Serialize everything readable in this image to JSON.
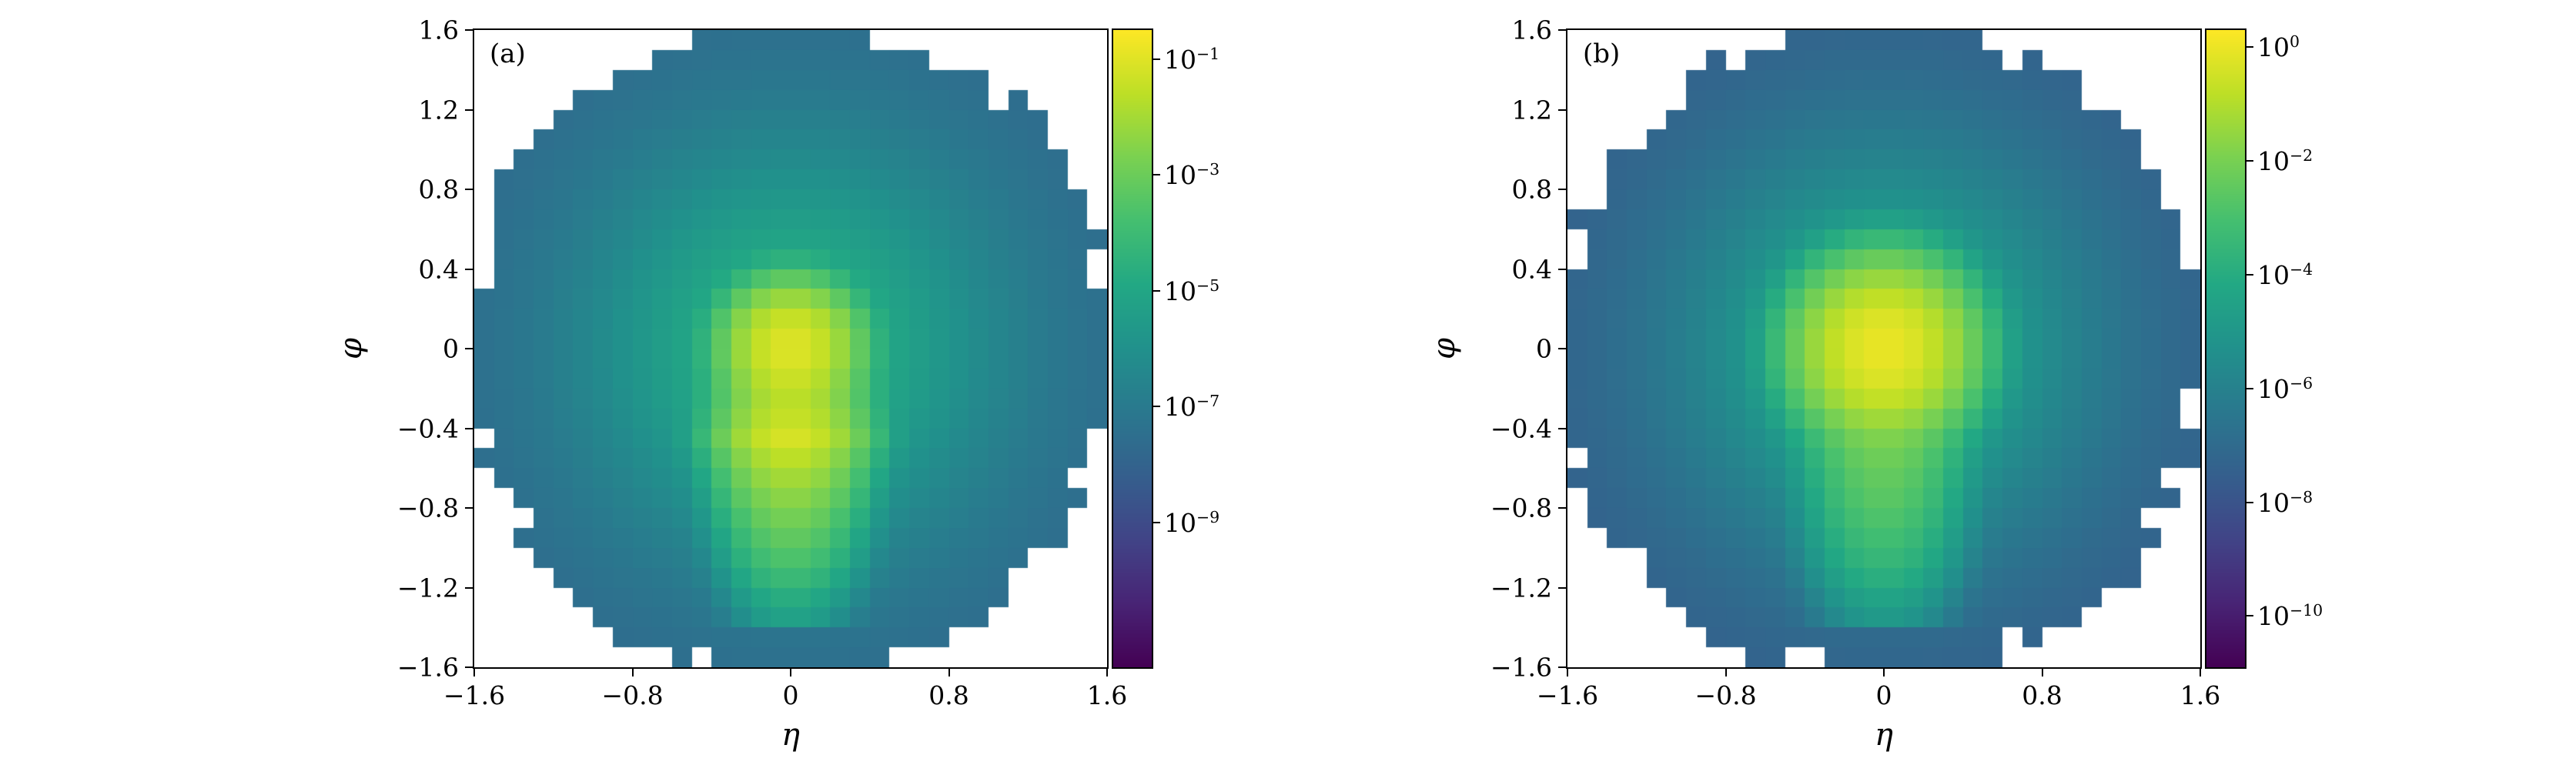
{
  "figure": {
    "background": "#ffffff",
    "type": "two-panel 2D histogram (eta-phi energy-flow heatmaps), log color scale, viridis colormap"
  },
  "colormap_stops": [
    {
      "t": 0.0,
      "hex": "#440154"
    },
    {
      "t": 0.1,
      "hex": "#482475"
    },
    {
      "t": 0.2,
      "hex": "#414487"
    },
    {
      "t": 0.3,
      "hex": "#355f8d"
    },
    {
      "t": 0.4,
      "hex": "#2a788e"
    },
    {
      "t": 0.5,
      "hex": "#21918c"
    },
    {
      "t": 0.6,
      "hex": "#22a884"
    },
    {
      "t": 0.7,
      "hex": "#44bf70"
    },
    {
      "t": 0.8,
      "hex": "#7ad151"
    },
    {
      "t": 0.9,
      "hex": "#bddf26"
    },
    {
      "t": 1.0,
      "hex": "#fde725"
    }
  ],
  "chart_data": [
    {
      "type": "heatmap",
      "panel_label": "(a)",
      "xlabel": "η",
      "ylabel": "φ",
      "x_range": [
        -1.6,
        1.6
      ],
      "y_range": [
        -1.6,
        1.6
      ],
      "grid_bins": 32,
      "grid_on": false,
      "x_ticks": [
        {
          "v": -1.6,
          "label": "−1.6"
        },
        {
          "v": -0.8,
          "label": "−0.8"
        },
        {
          "v": 0,
          "label": "0"
        },
        {
          "v": 0.8,
          "label": "0.8"
        },
        {
          "v": 1.6,
          "label": "1.6"
        }
      ],
      "y_ticks": [
        {
          "v": 1.6,
          "label": "1.6"
        },
        {
          "v": 1.2,
          "label": "1.2"
        },
        {
          "v": 0.8,
          "label": "0.8"
        },
        {
          "v": 0.4,
          "label": "0.4"
        },
        {
          "v": 0,
          "label": "0"
        },
        {
          "v": -0.4,
          "label": "−0.4"
        },
        {
          "v": -0.8,
          "label": "−0.8"
        },
        {
          "v": -1.2,
          "label": "−1.2"
        },
        {
          "v": -1.6,
          "label": "−1.6"
        }
      ],
      "colorbar": {
        "scale": "log10",
        "log_min": -11.5,
        "log_max": -0.5,
        "ticks": [
          {
            "exp": -1,
            "label": "−1"
          },
          {
            "exp": -3,
            "label": "−3"
          },
          {
            "exp": -5,
            "label": "−5"
          },
          {
            "exp": -7,
            "label": "−7"
          },
          {
            "exp": -9,
            "label": "−9"
          }
        ]
      },
      "distribution": {
        "shape": "jagged-disk",
        "disk_radius": 1.56,
        "edge_jitter": 0.16,
        "seed": 1,
        "base": {
          "log_center": -4.3,
          "log_edge": -7.8,
          "sigma": 1.05
        },
        "core_peak": {
          "x": 0,
          "y": 0,
          "log_amp": -1.05,
          "sigma": 0.11
        },
        "streak": {
          "sigma_x": 0.12,
          "profile": [
            [
              0.15,
              -2.6
            ],
            [
              -0.1,
              -2.2
            ],
            [
              -0.3,
              -1.6
            ],
            [
              -0.45,
              -1.15
            ],
            [
              -0.6,
              -1.8
            ],
            [
              -0.85,
              -2.8
            ],
            [
              -1.1,
              -3.8
            ],
            [
              -1.4,
              -5.5
            ]
          ]
        }
      }
    },
    {
      "type": "heatmap",
      "panel_label": "(b)",
      "xlabel": "η",
      "ylabel": "φ",
      "x_range": [
        -1.6,
        1.6
      ],
      "y_range": [
        -1.6,
        1.6
      ],
      "grid_bins": 32,
      "grid_on": false,
      "x_ticks": [
        {
          "v": -1.6,
          "label": "−1.6"
        },
        {
          "v": -0.8,
          "label": "−0.8"
        },
        {
          "v": 0,
          "label": "0"
        },
        {
          "v": 0.8,
          "label": "0.8"
        },
        {
          "v": 1.6,
          "label": "1.6"
        }
      ],
      "y_ticks": [
        {
          "v": 1.6,
          "label": "1.6"
        },
        {
          "v": 1.2,
          "label": "1.2"
        },
        {
          "v": 0.8,
          "label": "0.8"
        },
        {
          "v": 0.4,
          "label": "0.4"
        },
        {
          "v": 0,
          "label": "0"
        },
        {
          "v": -0.4,
          "label": "−0.4"
        },
        {
          "v": -0.8,
          "label": "−0.8"
        },
        {
          "v": -1.2,
          "label": "−1.2"
        },
        {
          "v": -1.6,
          "label": "−1.6"
        }
      ],
      "colorbar": {
        "scale": "log10",
        "log_min": -10.9,
        "log_max": 0.3,
        "ticks": [
          {
            "exp": 0,
            "label": "0"
          },
          {
            "exp": -2,
            "label": "−2"
          },
          {
            "exp": -4,
            "label": "−4"
          },
          {
            "exp": -6,
            "label": "−6"
          },
          {
            "exp": -8,
            "label": "−8"
          },
          {
            "exp": -10,
            "label": "−10"
          }
        ]
      },
      "distribution": {
        "shape": "jagged-disk",
        "disk_radius": 1.56,
        "edge_jitter": 0.16,
        "seed": 2,
        "base": {
          "log_center": -3.8,
          "log_edge": -7.6,
          "sigma": 1.05
        },
        "core_peak": {
          "x": 0,
          "y": 0,
          "log_amp": -0.05,
          "sigma": 0.14
        },
        "streak": {
          "sigma_x": 0.13,
          "profile": [
            [
              0.2,
              -1.4
            ],
            [
              -0.2,
              -1.7
            ],
            [
              -0.5,
              -2.1
            ],
            [
              -0.8,
              -2.7
            ],
            [
              -1.1,
              -3.6
            ],
            [
              -1.45,
              -5.4
            ]
          ]
        }
      }
    }
  ]
}
